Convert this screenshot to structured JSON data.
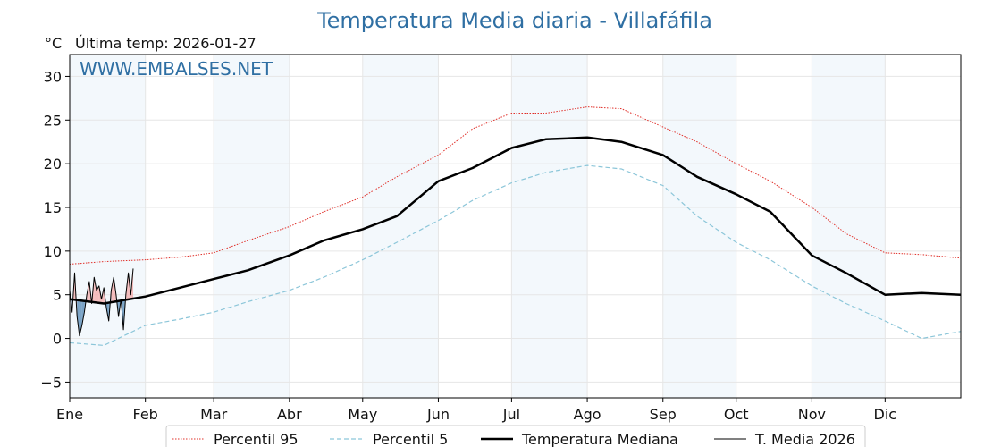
{
  "chart_data": {
    "type": "line",
    "title": "Temperatura Media diaria - Villafáfila",
    "unit_label": "°C",
    "last_temp_label": "Última temp: 2026-01-27",
    "watermark": "WWW.EMBALSES.NET",
    "xlabel": "",
    "ylabel": "",
    "ylim": [
      -6.8,
      32.5
    ],
    "xlim": [
      1,
      366
    ],
    "grid": true,
    "legend_position": "bottom",
    "month_labels": [
      "Ene",
      "Feb",
      "Mar",
      "Abr",
      "May",
      "Jun",
      "Jul",
      "Ago",
      "Sep",
      "Oct",
      "Nov",
      "Dic"
    ],
    "month_starts": [
      1,
      32,
      60,
      91,
      121,
      152,
      182,
      213,
      244,
      274,
      305,
      335
    ],
    "y_ticks": [
      -5,
      0,
      5,
      10,
      15,
      20,
      25,
      30
    ],
    "series": [
      {
        "name": "Percentil 95",
        "color": "#e0302a",
        "style": "dotted",
        "x": [
          1,
          15,
          32,
          46,
          60,
          74,
          91,
          105,
          121,
          135,
          152,
          166,
          182,
          196,
          213,
          227,
          244,
          258,
          274,
          288,
          305,
          319,
          335,
          350,
          366
        ],
        "y": [
          8.5,
          8.8,
          9.0,
          9.3,
          9.8,
          11.2,
          12.8,
          14.5,
          16.2,
          18.5,
          21.0,
          24.0,
          25.8,
          25.8,
          26.5,
          26.3,
          24.2,
          22.5,
          20.0,
          18.0,
          15.0,
          12.0,
          9.8,
          9.6,
          9.2
        ]
      },
      {
        "name": "Percentil 5",
        "color": "#8cc6d9",
        "style": "dashed",
        "x": [
          1,
          15,
          32,
          46,
          60,
          74,
          91,
          105,
          121,
          135,
          152,
          166,
          182,
          196,
          213,
          227,
          244,
          258,
          274,
          288,
          305,
          319,
          335,
          350,
          366
        ],
        "y": [
          -0.5,
          -0.8,
          1.5,
          2.2,
          3.0,
          4.2,
          5.5,
          7.0,
          9.0,
          11.0,
          13.5,
          15.8,
          17.8,
          19.0,
          19.8,
          19.4,
          17.5,
          14.0,
          11.0,
          9.0,
          6.0,
          4.0,
          2.0,
          0.0,
          0.8
        ]
      },
      {
        "name": "Temperatura Mediana",
        "color": "#000000",
        "style": "solid-bold",
        "x": [
          1,
          15,
          32,
          46,
          60,
          74,
          91,
          105,
          121,
          135,
          152,
          166,
          182,
          196,
          213,
          227,
          244,
          258,
          274,
          288,
          305,
          319,
          335,
          350,
          366
        ],
        "y": [
          4.5,
          4.0,
          4.8,
          5.8,
          6.8,
          7.8,
          9.5,
          11.2,
          12.5,
          14.0,
          18.0,
          19.5,
          21.8,
          22.8,
          23.0,
          22.5,
          21.0,
          18.5,
          16.5,
          14.5,
          9.5,
          7.5,
          5.0,
          5.2,
          5.0
        ]
      },
      {
        "name": "T. Media 2026",
        "color": "#000000",
        "style": "solid-thin",
        "x": [
          1,
          2,
          3,
          4,
          5,
          6,
          7,
          8,
          9,
          10,
          11,
          12,
          13,
          14,
          15,
          16,
          17,
          18,
          19,
          20,
          21,
          22,
          23,
          24,
          25,
          26,
          27
        ],
        "y": [
          5.5,
          3.0,
          7.5,
          2.5,
          0.3,
          1.5,
          3.0,
          5.0,
          6.5,
          4.0,
          7.0,
          5.5,
          6.0,
          4.5,
          5.8,
          3.5,
          2.0,
          5.5,
          7.0,
          5.0,
          2.5,
          4.5,
          1.0,
          5.0,
          7.5,
          5.0,
          8.0
        ]
      }
    ]
  }
}
